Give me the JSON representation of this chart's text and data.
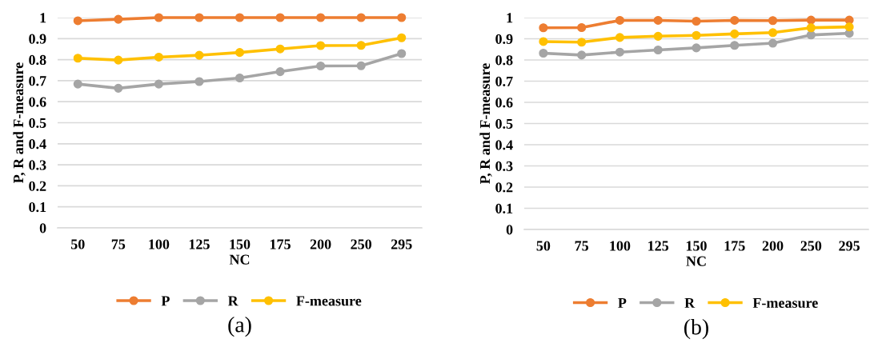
{
  "chart_data": [
    {
      "type": "line",
      "xlabel": "NC",
      "ylabel": "P, R and F-measure",
      "categories": [
        "50",
        "75",
        "100",
        "125",
        "150",
        "175",
        "200",
        "250",
        "295"
      ],
      "ylim": [
        0,
        1
      ],
      "yticks": [
        0,
        0.1,
        0.2,
        0.3,
        0.4,
        0.5,
        0.6,
        0.7,
        0.8,
        0.9,
        1
      ],
      "grid": "y",
      "legend": "bottom",
      "marker": "circle",
      "line_style": "solid",
      "annotations": [
        "(a)"
      ],
      "series": [
        {
          "name": "P",
          "color": "#ed7d31",
          "values": [
            0.985,
            0.992,
            1.0,
            1.0,
            1.0,
            1.0,
            1.0,
            1.0,
            1.0
          ]
        },
        {
          "name": "R",
          "color": "#a5a5a5",
          "values": [
            0.684,
            0.664,
            0.684,
            0.696,
            0.713,
            0.743,
            0.77,
            0.771,
            0.829
          ]
        },
        {
          "name": "F-measure",
          "color": "#ffc000",
          "values": [
            0.807,
            0.798,
            0.812,
            0.821,
            0.834,
            0.851,
            0.867,
            0.868,
            0.904
          ]
        }
      ]
    },
    {
      "type": "line",
      "xlabel": "NC",
      "ylabel": "P, R and F-measure",
      "categories": [
        "50",
        "75",
        "100",
        "125",
        "150",
        "175",
        "200",
        "250",
        "295"
      ],
      "ylim": [
        0,
        1
      ],
      "yticks": [
        0,
        0.1,
        0.2,
        0.3,
        0.4,
        0.5,
        0.6,
        0.7,
        0.8,
        0.9,
        1
      ],
      "grid": "y",
      "legend": "bottom",
      "marker": "circle",
      "line_style": "solid",
      "annotations": [
        "(b)"
      ],
      "series": [
        {
          "name": "P",
          "color": "#ed7d31",
          "values": [
            0.952,
            0.953,
            0.987,
            0.987,
            0.983,
            0.987,
            0.986,
            0.988,
            0.988
          ]
        },
        {
          "name": "R",
          "color": "#a5a5a5",
          "values": [
            0.832,
            0.823,
            0.837,
            0.847,
            0.857,
            0.869,
            0.879,
            0.918,
            0.926
          ]
        },
        {
          "name": "F-measure",
          "color": "#ffc000",
          "values": [
            0.887,
            0.884,
            0.906,
            0.912,
            0.916,
            0.923,
            0.929,
            0.952,
            0.956
          ]
        }
      ]
    }
  ]
}
